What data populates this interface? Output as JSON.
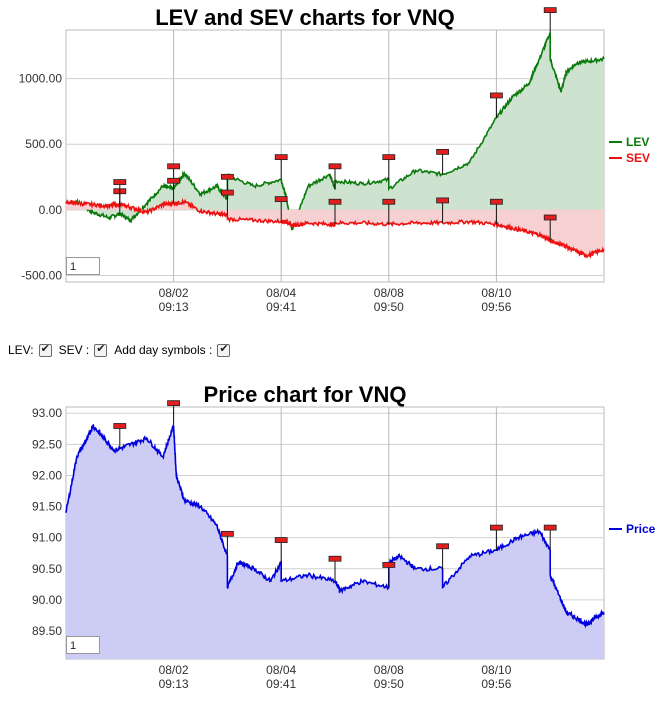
{
  "lev_chart": {
    "title": "LEV and SEV charts for VNQ",
    "zoom_value": "1",
    "legend": [
      {
        "name": "LEV",
        "color": "#0a7a0a"
      },
      {
        "name": "SEV",
        "color": "#ee1111"
      }
    ],
    "y_ticks": [
      "1000.00",
      "500.00",
      "0.00",
      "-500.00"
    ],
    "x_ticks": [
      {
        "date": "08/02",
        "time": "09:13"
      },
      {
        "date": "08/04",
        "time": "09:41"
      },
      {
        "date": "08/08",
        "time": "09:50"
      },
      {
        "date": "08/10",
        "time": "09:56"
      }
    ]
  },
  "controls": {
    "lev_label": "LEV:",
    "sev_label": "SEV :",
    "day_symbols_label": "Add day symbols :"
  },
  "price_chart": {
    "title": "Price chart for VNQ",
    "zoom_value": "1",
    "legend": [
      {
        "name": "Price",
        "color": "#0000dd"
      }
    ],
    "y_ticks": [
      "93.00",
      "92.50",
      "92.00",
      "91.50",
      "91.00",
      "90.50",
      "90.00",
      "89.50"
    ],
    "x_ticks": [
      {
        "date": "08/02",
        "time": "09:13"
      },
      {
        "date": "08/04",
        "time": "09:41"
      },
      {
        "date": "08/08",
        "time": "09:50"
      },
      {
        "date": "08/10",
        "time": "09:56"
      }
    ]
  },
  "chart_data": [
    {
      "type": "area",
      "title": "LEV and SEV charts for VNQ",
      "x_tick_labels": [
        "08/02 09:13",
        "08/04 09:41",
        "08/08 09:50",
        "08/10 09:56"
      ],
      "ylim": [
        -550,
        1370
      ],
      "grid": true,
      "legend_position": "right",
      "x": [
        0,
        0.02,
        0.05,
        0.08,
        0.1,
        0.12,
        0.15,
        0.18,
        0.2,
        0.22,
        0.25,
        0.28,
        0.3,
        0.3,
        0.35,
        0.4,
        0.41,
        0.42,
        0.45,
        0.49,
        0.5,
        0.5,
        0.55,
        0.6,
        0.6,
        0.65,
        0.7,
        0.75,
        0.8,
        0.83,
        0.86,
        0.88,
        0.9,
        0.9,
        0.92,
        0.93,
        0.95,
        0.97,
        1.0
      ],
      "series": [
        {
          "name": "LEV",
          "color": "#0a7a0a",
          "fill": "#cde3d0",
          "values": [
            20,
            60,
            -20,
            -60,
            -30,
            -80,
            50,
            180,
            160,
            280,
            120,
            180,
            80,
            260,
            180,
            230,
            80,
            -150,
            180,
            270,
            160,
            220,
            200,
            230,
            160,
            300,
            270,
            360,
            700,
            860,
            960,
            1150,
            1350,
            1150,
            900,
            1050,
            1120,
            1130,
            1150
          ]
        },
        {
          "name": "SEV",
          "color": "#ee1111",
          "fill": "#f7d0d2",
          "values": [
            60,
            50,
            40,
            30,
            40,
            20,
            -20,
            40,
            50,
            60,
            -10,
            -30,
            -40,
            -70,
            -80,
            -90,
            -90,
            -120,
            -100,
            -110,
            -110,
            -100,
            -100,
            -110,
            -110,
            -100,
            -100,
            -90,
            -110,
            -140,
            -170,
            -190,
            -230,
            -240,
            -260,
            -280,
            -320,
            -350,
            -300
          ]
        }
      ]
    },
    {
      "type": "area",
      "title": "Price chart for VNQ",
      "x_tick_labels": [
        "08/02 09:13",
        "08/04 09:41",
        "08/08 09:50",
        "08/10 09:56"
      ],
      "ylim": [
        89.05,
        93.1
      ],
      "grid": true,
      "legend_position": "right",
      "x": [
        0,
        0.02,
        0.04,
        0.05,
        0.07,
        0.09,
        0.12,
        0.15,
        0.18,
        0.2,
        0.205,
        0.22,
        0.25,
        0.28,
        0.3,
        0.3,
        0.32,
        0.35,
        0.38,
        0.4,
        0.4,
        0.45,
        0.5,
        0.51,
        0.55,
        0.6,
        0.6,
        0.62,
        0.65,
        0.7,
        0.7,
        0.75,
        0.8,
        0.84,
        0.88,
        0.9,
        0.9,
        0.92,
        0.93,
        0.95,
        0.97,
        0.98,
        0.99,
        1.0
      ],
      "series": [
        {
          "name": "Price",
          "color": "#0000dd",
          "fill": "#ccccf5",
          "values": [
            91.4,
            92.3,
            92.6,
            92.8,
            92.6,
            92.4,
            92.5,
            92.6,
            92.3,
            92.8,
            92.0,
            91.6,
            91.5,
            91.2,
            90.7,
            90.2,
            90.6,
            90.5,
            90.3,
            90.6,
            90.3,
            90.4,
            90.3,
            90.15,
            90.3,
            90.2,
            90.6,
            90.7,
            90.5,
            90.5,
            90.2,
            90.7,
            90.8,
            91.0,
            91.1,
            90.8,
            90.4,
            90.0,
            89.8,
            89.7,
            89.6,
            89.7,
            89.75,
            89.8
          ]
        }
      ]
    }
  ]
}
